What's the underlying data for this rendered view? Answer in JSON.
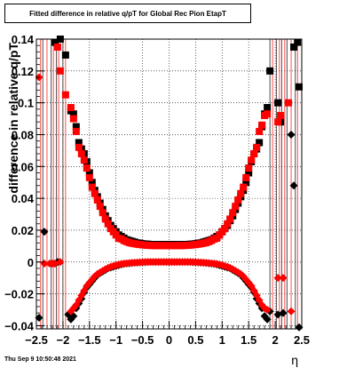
{
  "title_box": {
    "text": "Fitted difference in relative q/pT for Global Rec Pion EtapT"
  },
  "timestamp": "Thu Sep  9 10:50:48 2021",
  "colors": {
    "series_black": "#000000",
    "series_red": "#ff0000",
    "grid": "#000000",
    "background": "#ffffff"
  },
  "chart_data": {
    "type": "scatter",
    "title": "Fitted difference in relative q/pT for Global Rec Pion EtapT",
    "xlabel": "η",
    "ylabel": "difference in relative q/pT",
    "xlim": [
      -2.5,
      2.5
    ],
    "ylim": [
      -0.042,
      0.14
    ],
    "grid": true,
    "xticks": [
      -2.5,
      -2,
      -1.5,
      -1,
      -0.5,
      0,
      0.5,
      1,
      1.5,
      2,
      2.5
    ],
    "xtick_labels": [
      "−2.5",
      "−2",
      "−1.5",
      "−1",
      "−0.5",
      "0",
      "0.5",
      "1",
      "1.5",
      "2",
      "2.5"
    ],
    "yticks": [
      -0.04,
      -0.02,
      0,
      0.02,
      0.04,
      0.06,
      0.08,
      0.1,
      0.12,
      0.14
    ],
    "ytick_labels": [
      "−0.04",
      "−0.02",
      "0",
      "0.02",
      "0.04",
      "0.06",
      "0.08",
      "0.1",
      "0.12",
      "0.14"
    ],
    "series": [
      {
        "color": "#000000",
        "marker": "square",
        "x": [
          -2.15,
          -2.05,
          -1.95,
          -1.85,
          -1.8,
          -1.75,
          -1.7,
          -1.65,
          -1.6,
          -1.55,
          -1.5,
          -1.45,
          -1.4,
          -1.35,
          -1.3,
          -1.25,
          -1.2,
          -1.15,
          -1.1,
          -1.05,
          -1.0,
          -0.95,
          -0.9,
          -0.85,
          -0.8,
          -0.75,
          -0.7,
          -0.65,
          -0.6,
          -0.55,
          -0.5,
          -0.45,
          -0.4,
          -0.35,
          -0.3,
          -0.25,
          -0.2,
          -0.15,
          -0.1,
          -0.05,
          0.0,
          0.05,
          0.1,
          0.15,
          0.2,
          0.25,
          0.3,
          0.35,
          0.4,
          0.45,
          0.5,
          0.55,
          0.6,
          0.65,
          0.7,
          0.75,
          0.8,
          0.85,
          0.9,
          0.95,
          1.0,
          1.05,
          1.1,
          1.15,
          1.2,
          1.25,
          1.3,
          1.35,
          1.4,
          1.45,
          1.5,
          1.55,
          1.6,
          1.65,
          1.7,
          1.75,
          1.8,
          1.85,
          1.9,
          2.05,
          2.1,
          2.35,
          2.42,
          2.45
        ],
        "y": [
          0.138,
          0.14,
          0.13,
          0.095,
          0.093,
          0.085,
          0.075,
          0.071,
          0.068,
          0.063,
          0.056,
          0.05,
          0.045,
          0.041,
          0.037,
          0.033,
          0.029,
          0.026,
          0.023,
          0.021,
          0.019,
          0.017,
          0.016,
          0.015,
          0.014,
          0.0135,
          0.013,
          0.0125,
          0.012,
          0.0118,
          0.0115,
          0.0113,
          0.0112,
          0.011,
          0.011,
          0.011,
          0.011,
          0.011,
          0.011,
          0.011,
          0.011,
          0.011,
          0.011,
          0.011,
          0.011,
          0.011,
          0.011,
          0.011,
          0.0112,
          0.0113,
          0.0115,
          0.0118,
          0.012,
          0.0125,
          0.013,
          0.0135,
          0.014,
          0.015,
          0.016,
          0.017,
          0.019,
          0.021,
          0.023,
          0.026,
          0.029,
          0.033,
          0.037,
          0.041,
          0.045,
          0.05,
          0.056,
          0.063,
          0.068,
          0.071,
          0.075,
          0.085,
          0.093,
          0.097,
          0.12,
          0.1,
          0.088,
          0.135,
          0.138,
          0.11
        ]
      },
      {
        "color": "#ff0000",
        "marker": "square",
        "x": [
          -2.1,
          -2.05,
          -1.95,
          -1.85,
          -1.8,
          -1.75,
          -1.7,
          -1.65,
          -1.6,
          -1.55,
          -1.5,
          -1.45,
          -1.4,
          -1.35,
          -1.3,
          -1.25,
          -1.2,
          -1.15,
          -1.1,
          -1.05,
          -1.0,
          -0.95,
          -0.9,
          -0.85,
          -0.8,
          -0.75,
          -0.7,
          -0.65,
          -0.6,
          -0.55,
          -0.5,
          -0.45,
          -0.4,
          -0.35,
          -0.3,
          -0.25,
          -0.2,
          -0.15,
          -0.1,
          -0.05,
          0.0,
          0.05,
          0.1,
          0.15,
          0.2,
          0.25,
          0.3,
          0.35,
          0.4,
          0.45,
          0.5,
          0.55,
          0.6,
          0.65,
          0.7,
          0.75,
          0.8,
          0.85,
          0.9,
          0.95,
          1.0,
          1.05,
          1.1,
          1.15,
          1.2,
          1.25,
          1.3,
          1.35,
          1.4,
          1.45,
          1.5,
          1.55,
          1.6,
          1.65,
          1.7,
          1.75,
          1.8,
          1.85,
          2.05,
          2.1,
          2.25
        ],
        "y": [
          0.135,
          0.12,
          0.105,
          0.097,
          0.09,
          0.082,
          0.072,
          0.068,
          0.064,
          0.059,
          0.053,
          0.047,
          0.043,
          0.039,
          0.035,
          0.031,
          0.027,
          0.024,
          0.021,
          0.019,
          0.017,
          0.015,
          0.0145,
          0.0135,
          0.0128,
          0.0122,
          0.0118,
          0.0115,
          0.0112,
          0.011,
          0.0108,
          0.0106,
          0.0105,
          0.0104,
          0.0103,
          0.0103,
          0.0103,
          0.0103,
          0.0103,
          0.0103,
          0.0103,
          0.0103,
          0.0103,
          0.0103,
          0.0103,
          0.0103,
          0.0104,
          0.0105,
          0.0106,
          0.0108,
          0.011,
          0.0112,
          0.0115,
          0.0118,
          0.0122,
          0.0128,
          0.0135,
          0.0145,
          0.015,
          0.017,
          0.019,
          0.021,
          0.024,
          0.027,
          0.031,
          0.035,
          0.039,
          0.043,
          0.047,
          0.053,
          0.059,
          0.064,
          0.068,
          0.072,
          0.082,
          0.086,
          0.092,
          0.093,
          0.088,
          0.092,
          0.1
        ]
      },
      {
        "color": "#000000",
        "marker": "diamond",
        "x": [
          -2.45,
          -2.35,
          -2.2,
          -2.15,
          -2.1,
          -1.9,
          -1.85,
          -1.8,
          -1.75,
          -1.7,
          -1.65,
          -1.6,
          -1.55,
          -1.5,
          -1.45,
          -1.4,
          -1.35,
          -1.3,
          -1.25,
          -1.2,
          -1.15,
          -1.1,
          -1.05,
          -1.0,
          -0.95,
          -0.9,
          -0.85,
          -0.8,
          -0.75,
          -0.7,
          -0.65,
          -0.6,
          -0.55,
          -0.5,
          -0.45,
          -0.4,
          -0.35,
          -0.3,
          -0.25,
          -0.2,
          -0.15,
          -0.1,
          -0.05,
          0.0,
          0.05,
          0.1,
          0.15,
          0.2,
          0.25,
          0.3,
          0.35,
          0.4,
          0.45,
          0.5,
          0.55,
          0.6,
          0.65,
          0.7,
          0.75,
          0.8,
          0.85,
          0.9,
          0.95,
          1.0,
          1.05,
          1.1,
          1.15,
          1.2,
          1.25,
          1.3,
          1.35,
          1.4,
          1.45,
          1.5,
          1.55,
          1.6,
          1.65,
          1.7,
          1.75,
          1.8,
          1.85,
          1.9,
          2.05,
          2.15,
          2.3,
          2.35,
          2.45
        ],
        "y": [
          -0.035,
          0.019,
          -0.001,
          -0.001,
          0.0,
          -0.033,
          -0.036,
          -0.034,
          -0.029,
          -0.026,
          -0.023,
          -0.019,
          -0.016,
          -0.014,
          -0.012,
          -0.01,
          -0.008,
          -0.007,
          -0.006,
          -0.005,
          -0.004,
          -0.0035,
          -0.003,
          -0.0025,
          -0.002,
          -0.0015,
          -0.0012,
          -0.001,
          -0.0008,
          -0.0006,
          -0.0005,
          -0.0004,
          -0.0003,
          -0.0002,
          -0.0001,
          0.0,
          0.0,
          0.0,
          0.0,
          0.0,
          0.0,
          0.0,
          0.0,
          0.0,
          0.0,
          0.0,
          0.0,
          0.0,
          0.0,
          0.0,
          0.0,
          0.0,
          -0.0001,
          -0.0002,
          -0.0003,
          -0.0004,
          -0.0005,
          -0.0006,
          -0.0008,
          -0.001,
          -0.0012,
          -0.0015,
          -0.002,
          -0.0025,
          -0.003,
          -0.0035,
          -0.004,
          -0.005,
          -0.006,
          -0.007,
          -0.008,
          -0.01,
          -0.012,
          -0.014,
          -0.016,
          -0.019,
          -0.023,
          -0.026,
          -0.029,
          -0.034,
          -0.036,
          -0.031,
          -0.033,
          -0.032,
          0.08,
          0.048,
          -0.041
        ]
      },
      {
        "color": "#ff0000",
        "marker": "diamond",
        "x": [
          -2.45,
          -2.35,
          -2.25,
          -2.2,
          -2.15,
          -2.05,
          -1.85,
          -1.8,
          -1.75,
          -1.7,
          -1.65,
          -1.6,
          -1.55,
          -1.5,
          -1.45,
          -1.4,
          -1.35,
          -1.3,
          -1.25,
          -1.2,
          -1.15,
          -1.1,
          -1.05,
          -1.0,
          -0.95,
          -0.9,
          -0.85,
          -0.8,
          -0.75,
          -0.7,
          -0.65,
          -0.6,
          -0.55,
          -0.5,
          -0.45,
          -0.4,
          -0.35,
          -0.3,
          -0.25,
          -0.2,
          -0.15,
          -0.1,
          -0.05,
          0.0,
          0.05,
          0.1,
          0.15,
          0.2,
          0.25,
          0.3,
          0.35,
          0.4,
          0.45,
          0.5,
          0.55,
          0.6,
          0.65,
          0.7,
          0.75,
          0.8,
          0.85,
          0.9,
          0.95,
          1.0,
          1.05,
          1.1,
          1.15,
          1.2,
          1.25,
          1.3,
          1.35,
          1.4,
          1.45,
          1.5,
          1.55,
          1.6,
          1.65,
          1.7,
          1.75,
          1.8,
          1.85,
          2.05,
          2.15,
          2.3
        ],
        "y": [
          0.116,
          -0.001,
          -0.001,
          -0.001,
          -0.001,
          0.0,
          -0.031,
          -0.029,
          -0.027,
          -0.024,
          -0.021,
          -0.018,
          -0.015,
          -0.013,
          -0.011,
          -0.009,
          -0.0075,
          -0.0065,
          -0.0055,
          -0.0045,
          -0.0037,
          -0.003,
          -0.0025,
          -0.002,
          -0.0015,
          -0.0012,
          -0.001,
          -0.0008,
          -0.0006,
          -0.0005,
          -0.0004,
          -0.0003,
          -0.0002,
          -0.0001,
          0.0,
          0.0,
          0.0,
          0.0,
          0.0,
          0.0,
          0.0,
          0.0,
          0.0,
          0.0,
          0.0,
          0.0,
          0.0,
          0.0,
          0.0,
          0.0,
          0.0,
          0.0,
          0.0,
          -0.0001,
          -0.0002,
          -0.0003,
          -0.0004,
          -0.0005,
          -0.0006,
          -0.0008,
          -0.001,
          -0.0012,
          -0.0015,
          -0.002,
          -0.0025,
          -0.003,
          -0.0037,
          -0.0045,
          -0.0055,
          -0.0065,
          -0.0075,
          -0.009,
          -0.011,
          -0.013,
          -0.015,
          -0.018,
          -0.021,
          -0.024,
          -0.027,
          -0.029,
          -0.03,
          -0.01,
          -0.01,
          -0.031
        ]
      }
    ]
  }
}
